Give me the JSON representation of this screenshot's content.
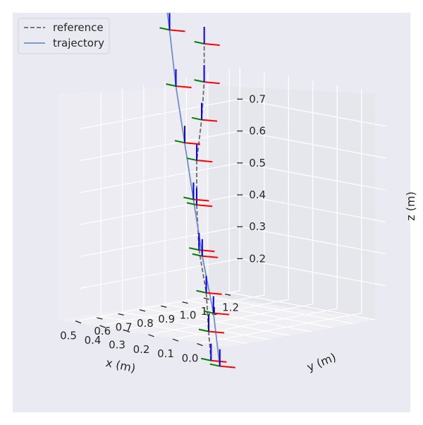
{
  "chart_data": {
    "type": "line",
    "projection": "3d",
    "xlabel": "x (m)",
    "ylabel": "y (m)",
    "zlabel": "z (m)",
    "x_ticks": [
      "0.0",
      "0.1",
      "0.2",
      "0.3",
      "0.4",
      "0.5"
    ],
    "y_ticks": [
      "0.6",
      "0.7",
      "0.8",
      "0.9",
      "1.0",
      "1.1",
      "1.2"
    ],
    "z_ticks": [
      "0.2",
      "0.3",
      "0.4",
      "0.5",
      "0.6",
      "0.7"
    ],
    "grid": true,
    "legend": {
      "position": "top-left",
      "entries": [
        {
          "label": "reference",
          "style": "dashed",
          "color": "#6b6b6b"
        },
        {
          "label": "trajectory",
          "style": "solid",
          "color": "#6f8fc8"
        }
      ]
    },
    "frame_axis_colors": {
      "x": "#ff0000",
      "y": "#008000",
      "z": "#0000ff"
    },
    "series": [
      {
        "name": "reference",
        "style": "dashed",
        "color": "#6b6b6b",
        "x": [
          -0.04,
          0.04,
          0.12,
          0.22,
          0.3,
          0.37,
          0.42,
          0.48,
          0.55
        ],
        "y": [
          0.5,
          0.58,
          0.66,
          0.74,
          0.82,
          0.9,
          0.98,
          1.06,
          1.14
        ],
        "z": [
          0.05,
          0.12,
          0.22,
          0.33,
          0.45,
          0.57,
          0.68,
          0.78,
          0.88
        ]
      },
      {
        "name": "trajectory",
        "style": "solid",
        "color": "#6f8fc8",
        "x": [
          -0.12,
          -0.05,
          0.04,
          0.12,
          0.2,
          0.28,
          0.35,
          0.42
        ],
        "y": [
          0.45,
          0.5,
          0.55,
          0.6,
          0.65,
          0.7,
          0.75,
          0.8
        ],
        "z": [
          0.05,
          0.2,
          0.36,
          0.52,
          0.68,
          0.84,
          1.0,
          1.14
        ]
      }
    ]
  }
}
